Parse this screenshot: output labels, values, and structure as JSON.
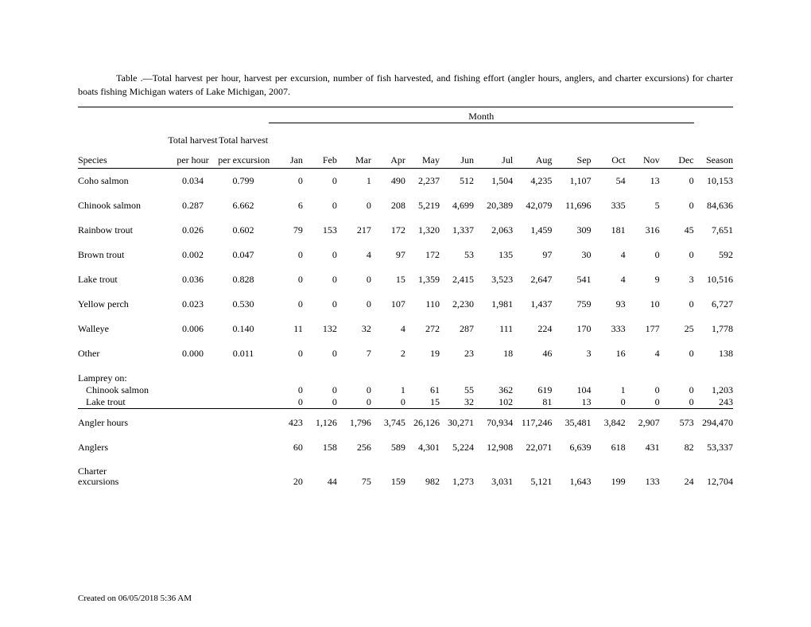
{
  "title": "Table .—Total harvest per hour, harvest per excursion, number of fish harvested, and fishing effort (angler hours, anglers, and charter excursions) for charter boats fishing Michigan waters of Lake Michigan, 2007.",
  "month_header": "Month",
  "columns": {
    "species": "Species",
    "per_hour_l1": "Total harvest",
    "per_hour_l2": "per hour",
    "per_exc_l1": "Total harvest",
    "per_exc_l2": "per excursion",
    "months": [
      "Jan",
      "Feb",
      "Mar",
      "Apr",
      "May",
      "Jun",
      "Jul",
      "Aug",
      "Sep",
      "Oct",
      "Nov",
      "Dec"
    ],
    "season": "Season"
  },
  "species_rows": [
    {
      "name": "Coho salmon",
      "ph": "0.034",
      "pe": "0.799",
      "m": [
        "0",
        "0",
        "1",
        "490",
        "2,237",
        "512",
        "1,504",
        "4,235",
        "1,107",
        "54",
        "13",
        "0"
      ],
      "season": "10,153"
    },
    {
      "name": "Chinook salmon",
      "ph": "0.287",
      "pe": "6.662",
      "m": [
        "6",
        "0",
        "0",
        "208",
        "5,219",
        "4,699",
        "20,389",
        "42,079",
        "11,696",
        "335",
        "5",
        "0"
      ],
      "season": "84,636"
    },
    {
      "name": "Rainbow trout",
      "ph": "0.026",
      "pe": "0.602",
      "m": [
        "79",
        "153",
        "217",
        "172",
        "1,320",
        "1,337",
        "2,063",
        "1,459",
        "309",
        "181",
        "316",
        "45"
      ],
      "season": "7,651"
    },
    {
      "name": "Brown trout",
      "ph": "0.002",
      "pe": "0.047",
      "m": [
        "0",
        "0",
        "4",
        "97",
        "172",
        "53",
        "135",
        "97",
        "30",
        "4",
        "0",
        "0"
      ],
      "season": "592"
    },
    {
      "name": "Lake trout",
      "ph": "0.036",
      "pe": "0.828",
      "m": [
        "0",
        "0",
        "0",
        "15",
        "1,359",
        "2,415",
        "3,523",
        "2,647",
        "541",
        "4",
        "9",
        "3"
      ],
      "season": "10,516"
    },
    {
      "name": "Yellow perch",
      "ph": "0.023",
      "pe": "0.530",
      "m": [
        "0",
        "0",
        "0",
        "107",
        "110",
        "2,230",
        "1,981",
        "1,437",
        "759",
        "93",
        "10",
        "0"
      ],
      "season": "6,727"
    },
    {
      "name": "Walleye",
      "ph": "0.006",
      "pe": "0.140",
      "m": [
        "11",
        "132",
        "32",
        "4",
        "272",
        "287",
        "111",
        "224",
        "170",
        "333",
        "177",
        "25"
      ],
      "season": "1,778"
    },
    {
      "name": "Other",
      "ph": "0.000",
      "pe": "0.011",
      "m": [
        "0",
        "0",
        "7",
        "2",
        "19",
        "23",
        "18",
        "46",
        "3",
        "16",
        "4",
        "0"
      ],
      "season": "138"
    }
  ],
  "lamprey_label": "Lamprey on:",
  "lamprey_rows": [
    {
      "name": "Chinook salmon",
      "m": [
        "0",
        "0",
        "0",
        "1",
        "61",
        "55",
        "362",
        "619",
        "104",
        "1",
        "0",
        "0"
      ],
      "season": "1,203"
    },
    {
      "name": "Lake trout",
      "m": [
        "0",
        "0",
        "0",
        "0",
        "15",
        "32",
        "102",
        "81",
        "13",
        "0",
        "0",
        "0"
      ],
      "season": "243"
    }
  ],
  "effort_rows": [
    {
      "name": "Angler hours",
      "m": [
        "423",
        "1,126",
        "1,796",
        "3,745",
        "26,126",
        "30,271",
        "70,934",
        "117,246",
        "35,481",
        "3,842",
        "2,907",
        "573"
      ],
      "season": "294,470"
    },
    {
      "name": "Anglers",
      "m": [
        "60",
        "158",
        "256",
        "589",
        "4,301",
        "5,224",
        "12,908",
        "22,071",
        "6,639",
        "618",
        "431",
        "82"
      ],
      "season": "53,337"
    },
    {
      "name_l1": "Charter",
      "name_l2": "excursions",
      "m": [
        "20",
        "44",
        "75",
        "159",
        "982",
        "1,273",
        "3,031",
        "5,121",
        "1,643",
        "199",
        "133",
        "24"
      ],
      "season": "12,704"
    }
  ],
  "footer": "Created on 06/05/2018 5:36 AM"
}
